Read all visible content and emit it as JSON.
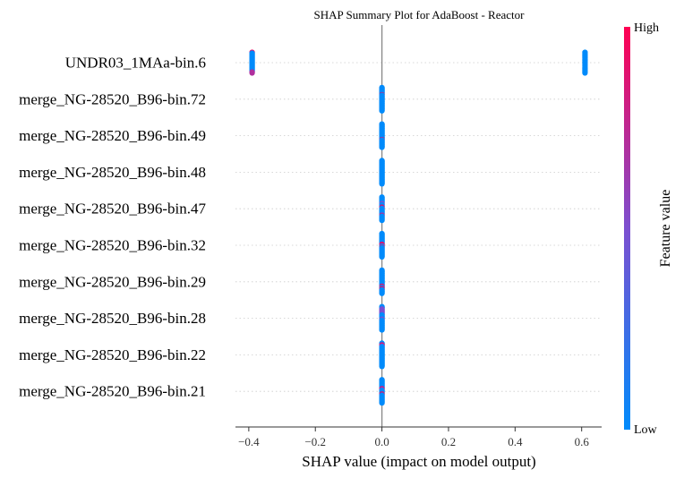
{
  "chart_data": {
    "type": "scatter",
    "title": "SHAP Summary Plot for AdaBoost - Reactor",
    "xlabel": "SHAP value (impact on model output)",
    "xlim": [
      -0.44,
      0.66
    ],
    "xticks": [
      -0.4,
      -0.2,
      0.0,
      0.2,
      0.4,
      0.6
    ],
    "xtick_labels": [
      "−0.4",
      "−0.2",
      "0.0",
      "0.2",
      "0.4",
      "0.6"
    ],
    "zero_line": 0.0,
    "colorbar": {
      "label": "Feature value",
      "high_label": "High",
      "low_label": "Low",
      "low_color": "#008bfb",
      "mid_color": "#7c4fd0",
      "high_color": "#ff0052"
    },
    "features": [
      {
        "name": "UNDR03_1MAa-bin.6",
        "points": [
          {
            "x": -0.39,
            "values": [
              0.9,
              0.0,
              0.0,
              0.0,
              0.0,
              0.0,
              0.0,
              0.0,
              0.0,
              0.0,
              0.0,
              0.0,
              0.0,
              0.0,
              0.0,
              0.0,
              0.0,
              0.0,
              0.0,
              0.0,
              0.0,
              0.0,
              0.7,
              0.7
            ]
          },
          {
            "x": 0.61,
            "values": [
              0.0,
              0.0,
              0.0,
              0.0,
              0.0,
              0.0,
              0.0,
              0.0,
              0.0,
              0.0,
              0.0,
              0.0,
              0.0,
              0.0,
              0.0,
              0.0
            ]
          }
        ]
      },
      {
        "name": "merge_NG-28520_B96-bin.72",
        "points": [
          {
            "x": 0.0,
            "values": [
              0.0,
              0.0,
              0.0,
              0.0,
              0.0,
              0.0,
              0.0,
              0.0,
              0.0,
              0.0,
              0.0,
              0.0,
              0.9,
              0.0,
              0.0,
              0.0,
              0.0,
              0.0,
              0.0,
              0.0,
              0.0,
              0.0,
              0.0,
              0.0,
              0.0,
              0.0,
              0.0,
              0.0,
              0.0,
              0.0,
              0.0,
              0.0,
              0.0,
              0.0,
              0.0,
              0.0,
              0.0,
              0.0,
              0.0,
              0.0
            ]
          }
        ]
      },
      {
        "name": "merge_NG-28520_B96-bin.49",
        "points": [
          {
            "x": 0.0,
            "values": [
              0.0,
              0.0,
              0.0,
              0.0,
              0.0,
              0.0,
              0.0,
              0.0,
              0.0,
              0.0,
              0.0,
              0.0,
              0.0,
              0.0,
              0.0,
              0.0,
              0.0,
              0.0,
              0.0,
              0.0,
              0.0,
              0.0,
              0.0,
              0.0,
              0.0,
              0.0,
              0.9,
              0.0,
              0.0,
              0.0,
              0.0,
              0.0,
              0.0,
              0.0,
              0.0,
              0.0,
              0.0,
              0.0,
              0.0,
              0.0
            ]
          }
        ]
      },
      {
        "name": "merge_NG-28520_B96-bin.48",
        "points": [
          {
            "x": 0.0,
            "values": [
              0.0,
              0.0,
              0.0,
              0.0,
              0.0,
              0.0,
              0.0,
              0.0,
              0.0,
              0.0,
              0.0,
              0.0,
              0.0,
              0.0,
              0.0,
              0.0,
              0.0,
              0.0,
              0.0,
              0.0,
              0.0,
              0.0,
              0.0,
              0.0,
              0.0,
              0.0,
              0.0,
              0.0,
              0.0,
              0.0,
              0.0,
              0.0,
              0.0,
              0.0,
              0.0,
              0.0,
              0.0,
              0.0,
              0.0,
              0.0
            ]
          }
        ]
      },
      {
        "name": "merge_NG-28520_B96-bin.47",
        "points": [
          {
            "x": 0.0,
            "values": [
              0.0,
              0.0,
              0.0,
              0.0,
              0.0,
              0.0,
              0.0,
              0.0,
              0.0,
              0.0,
              0.0,
              0.5,
              0.5,
              0.0,
              0.0,
              0.0,
              0.0,
              0.9,
              0.9,
              0.0,
              0.0,
              0.0,
              0.0,
              0.0,
              0.0,
              0.0,
              0.0,
              0.0,
              0.0,
              0.0,
              0.5,
              0.9,
              0.0,
              0.0,
              0.0,
              0.0,
              0.0,
              0.0,
              0.0,
              0.0
            ]
          }
        ]
      },
      {
        "name": "merge_NG-28520_B96-bin.32",
        "points": [
          {
            "x": 0.0,
            "values": [
              0.0,
              0.0,
              0.0,
              0.0,
              0.0,
              0.0,
              0.0,
              0.0,
              0.0,
              0.0,
              0.0,
              0.0,
              0.0,
              0.0,
              0.0,
              0.0,
              0.0,
              0.0,
              0.9,
              0.9,
              0.9,
              0.0,
              0.0,
              0.9,
              0.0,
              0.0,
              0.0,
              0.0,
              0.0,
              0.0,
              0.0,
              0.0,
              0.0,
              0.0,
              0.0,
              0.0,
              0.0,
              0.0,
              0.0,
              0.0
            ]
          }
        ]
      },
      {
        "name": "merge_NG-28520_B96-bin.29",
        "points": [
          {
            "x": 0.0,
            "values": [
              0.0,
              0.0,
              0.0,
              0.0,
              0.0,
              0.0,
              0.0,
              0.0,
              0.0,
              0.0,
              0.0,
              0.0,
              0.0,
              0.0,
              0.0,
              0.0,
              0.0,
              0.0,
              0.0,
              0.0,
              0.0,
              0.0,
              0.0,
              0.0,
              0.0,
              0.0,
              0.0,
              0.9,
              0.9,
              0.0,
              0.0,
              0.9,
              0.9,
              0.0,
              0.0,
              0.0,
              0.0,
              0.0,
              0.0,
              0.0
            ]
          }
        ]
      },
      {
        "name": "merge_NG-28520_B96-bin.28",
        "points": [
          {
            "x": 0.0,
            "values": [
              0.0,
              0.0,
              0.0,
              0.0,
              0.5,
              0.5,
              0.5,
              0.5,
              0.5,
              0.5,
              0.5,
              0.5,
              0.5,
              0.5,
              0.0,
              0.0,
              0.0,
              0.0,
              0.0,
              0.0,
              0.0,
              0.5,
              0.5,
              0.0,
              0.0,
              0.0,
              0.0,
              0.0,
              0.0,
              0.0,
              0.0,
              0.0,
              0.0,
              0.0,
              0.0,
              0.0,
              0.0,
              0.0,
              0.0,
              0.0
            ]
          }
        ]
      },
      {
        "name": "merge_NG-28520_B96-bin.22",
        "points": [
          {
            "x": 0.0,
            "values": [
              0.0,
              0.0,
              0.0,
              0.9,
              0.9,
              0.5,
              0.0,
              0.0,
              0.0,
              0.0,
              0.0,
              0.0,
              0.0,
              0.0,
              0.0,
              0.0,
              0.0,
              0.0,
              0.0,
              0.0,
              0.0,
              0.0,
              0.0,
              0.0,
              0.0,
              0.0,
              0.0,
              0.0,
              0.0,
              0.0,
              0.0,
              0.0,
              0.0,
              0.0,
              0.0,
              0.0,
              0.0,
              0.0,
              0.0,
              0.0
            ]
          }
        ]
      },
      {
        "name": "merge_NG-28520_B96-bin.21",
        "points": [
          {
            "x": 0.0,
            "values": [
              0.0,
              0.0,
              0.0,
              0.0,
              0.0,
              0.0,
              0.0,
              0.0,
              0.0,
              0.0,
              0.0,
              0.0,
              0.0,
              0.0,
              0.0,
              0.9,
              0.9,
              0.5,
              0.0,
              0.0,
              0.0,
              0.0,
              0.0,
              0.0,
              0.9,
              0.9,
              0.0,
              0.0,
              0.0,
              0.0,
              0.0,
              0.0,
              0.0,
              0.0,
              0.0,
              0.0,
              0.0,
              0.0,
              0.0,
              0.0
            ]
          }
        ]
      }
    ]
  }
}
